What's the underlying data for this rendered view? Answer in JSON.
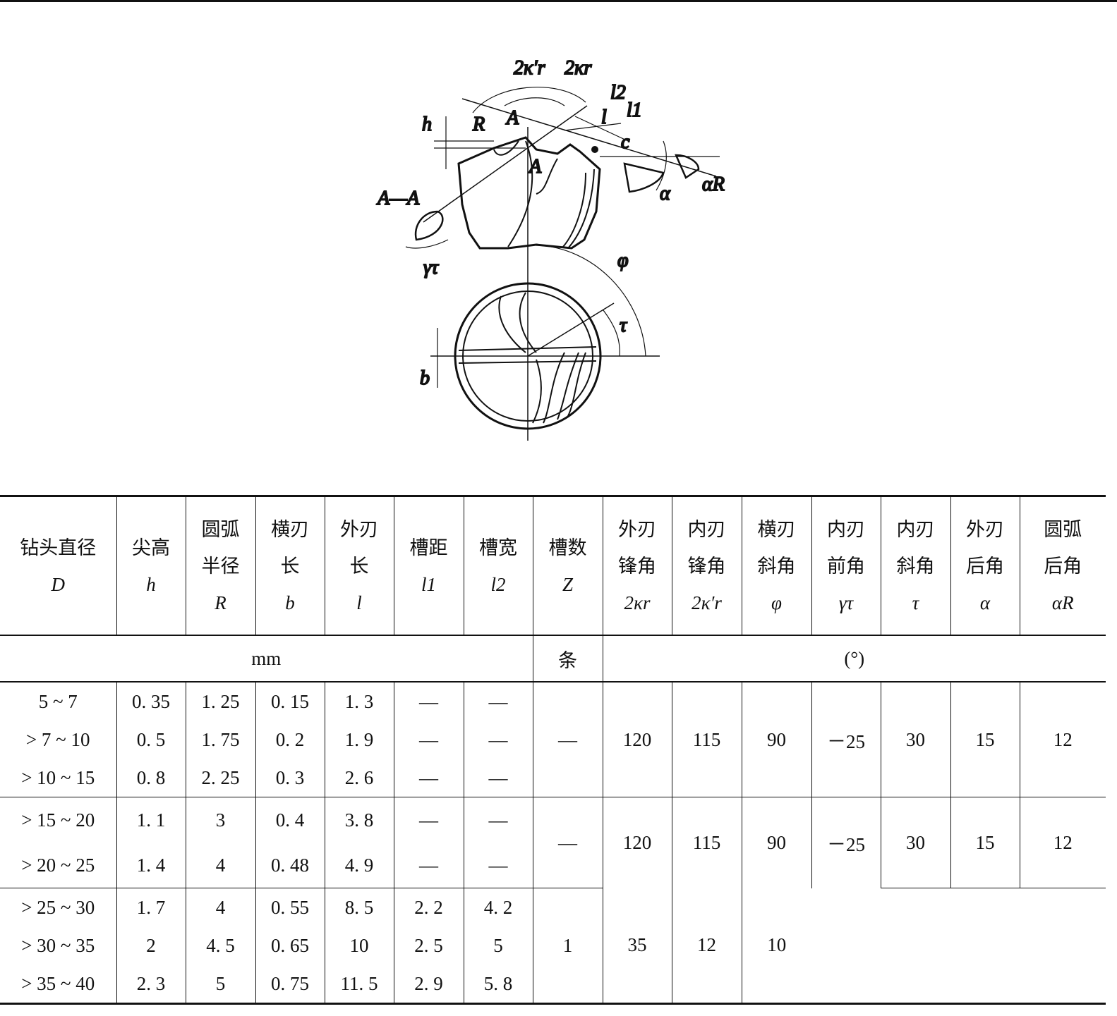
{
  "figure": {
    "labels": {
      "two_kr_prime": "2κ′r",
      "two_kr": "2κr",
      "l2": "l2",
      "l1": "l1",
      "l": "l",
      "c": "c",
      "h": "h",
      "R": "R",
      "A_top": "A",
      "A_mid": "A",
      "section": "A—A",
      "alpha": "α",
      "alpha_R": "αR",
      "gamma_tau": "γτ",
      "phi": "φ",
      "tau": "τ",
      "b": "b"
    }
  },
  "table": {
    "headers": [
      {
        "cn": [
          "钻头直径"
        ],
        "sym": "D"
      },
      {
        "cn": [
          "尖高"
        ],
        "sym": "h"
      },
      {
        "cn": [
          "圆弧",
          "半径"
        ],
        "sym": "R"
      },
      {
        "cn": [
          "横刃",
          "长"
        ],
        "sym": "b"
      },
      {
        "cn": [
          "外刃",
          "长"
        ],
        "sym": "l"
      },
      {
        "cn": [
          "槽距"
        ],
        "sym": "l1"
      },
      {
        "cn": [
          "槽宽"
        ],
        "sym": "l2"
      },
      {
        "cn": [
          "槽数"
        ],
        "sym": "Z"
      },
      {
        "cn": [
          "外刃",
          "锋角"
        ],
        "sym": "2κr"
      },
      {
        "cn": [
          "内刃",
          "锋角"
        ],
        "sym": "2κ′r"
      },
      {
        "cn": [
          "横刃",
          "斜角"
        ],
        "sym": "φ"
      },
      {
        "cn": [
          "内刃",
          "前角"
        ],
        "sym": "γτ"
      },
      {
        "cn": [
          "内刃",
          "斜角"
        ],
        "sym": "τ"
      },
      {
        "cn": [
          "外刃",
          "后角"
        ],
        "sym": "α"
      },
      {
        "cn": [
          "圆弧",
          "后角"
        ],
        "sym": "αR"
      }
    ],
    "units": {
      "mm": "mm",
      "count": "条",
      "deg": "(°)"
    },
    "rows": [
      [
        "5 ~ 7",
        "0. 35",
        "1. 25",
        "0. 15",
        "1. 3",
        "—",
        "—"
      ],
      [
        "> 7 ~ 10",
        "0. 5",
        "1. 75",
        "0. 2",
        "1. 9",
        "—",
        "—"
      ],
      [
        "> 10 ~ 15",
        "0. 8",
        "2. 25",
        "0. 3",
        "2. 6",
        "—",
        "—"
      ],
      [
        "> 15 ~ 20",
        "1. 1",
        "3",
        "0. 4",
        "3. 8",
        "—",
        "—"
      ],
      [
        "> 20 ~ 25",
        "1. 4",
        "4",
        "0. 48",
        "4. 9",
        "—",
        "—"
      ],
      [
        "> 25 ~ 30",
        "1. 7",
        "4",
        "0. 55",
        "8. 5",
        "2. 2",
        "4. 2"
      ],
      [
        "> 30 ~ 35",
        "2",
        "4. 5",
        "0. 65",
        "10",
        "2. 5",
        "5"
      ],
      [
        "> 35 ~ 40",
        "2. 3",
        "5",
        "0. 75",
        "11. 5",
        "2. 9",
        "5. 8"
      ]
    ],
    "group1": {
      "Z": "—",
      "kr": "120",
      "kr_prime": "115",
      "phi": "90",
      "gamma": "－25",
      "tau": "30",
      "alpha": "15",
      "alpha_R": "12"
    },
    "group2": {
      "Z": "—",
      "tau": "30",
      "alpha": "15",
      "alpha_R": "12"
    },
    "group3": {
      "Z": "1",
      "tau": "35",
      "alpha": "12",
      "alpha_R": "10"
    },
    "group23": {
      "kr": "120",
      "kr_prime": "115",
      "phi": "90",
      "gamma": "－25"
    }
  }
}
